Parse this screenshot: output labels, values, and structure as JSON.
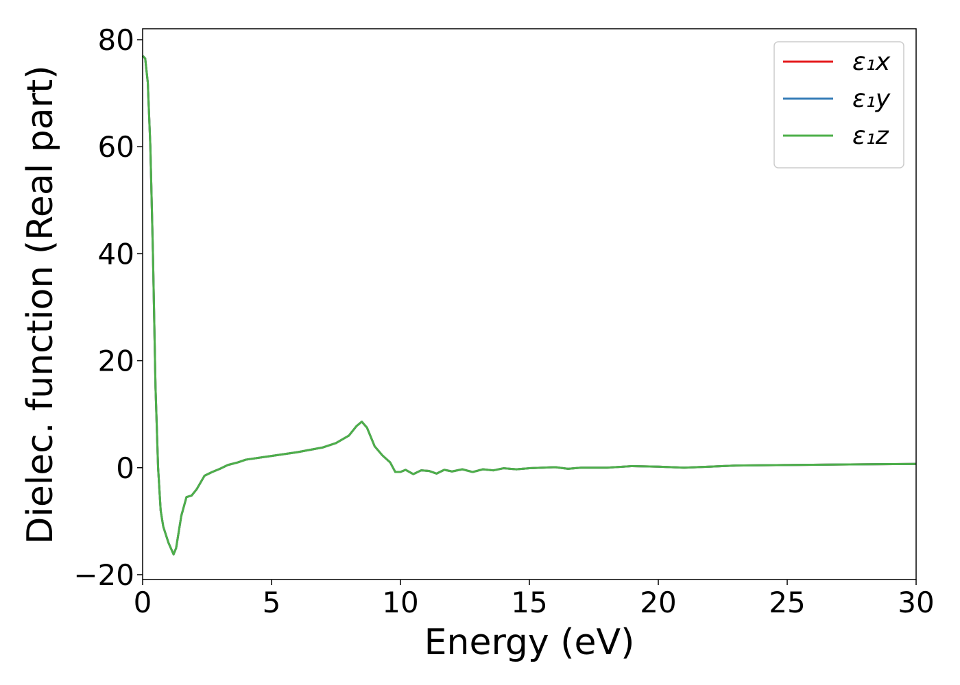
{
  "chart_data": {
    "type": "line",
    "xlabel": "Energy (eV)",
    "ylabel": "Dielec. function (Real part)",
    "x": [
      0,
      0.1,
      0.2,
      0.3,
      0.4,
      0.5,
      0.6,
      0.7,
      0.8,
      1.0,
      1.2,
      1.3,
      1.5,
      1.7,
      1.9,
      2.1,
      2.4,
      2.7,
      3.0,
      3.3,
      3.7,
      4.0,
      5.0,
      6.0,
      7.0,
      7.5,
      8.0,
      8.3,
      8.5,
      8.7,
      9.0,
      9.3,
      9.6,
      9.8,
      10.0,
      10.2,
      10.5,
      10.8,
      11.1,
      11.4,
      11.7,
      12.0,
      12.4,
      12.8,
      13.2,
      13.6,
      14.0,
      14.5,
      15,
      16,
      16.5,
      17,
      18,
      19,
      20,
      21,
      22,
      23,
      25,
      27,
      30
    ],
    "series": [
      {
        "name": "ε₁x",
        "color": "#e41a1c",
        "values": [
          77,
          76.5,
          72,
          60,
          40,
          15,
          0,
          -8,
          -11,
          -14,
          -16.2,
          -15,
          -9,
          -5.5,
          -5.2,
          -4,
          -1.5,
          -0.8,
          -0.2,
          0.5,
          1,
          1.5,
          2.2,
          2.9,
          3.8,
          4.6,
          6,
          7.8,
          8.6,
          7.5,
          4,
          2.3,
          1,
          -0.8,
          -0.8,
          -0.4,
          -1.2,
          -0.5,
          -0.6,
          -1.1,
          -0.4,
          -0.7,
          -0.3,
          -0.8,
          -0.3,
          -0.5,
          -0.1,
          -0.3,
          -0.1,
          0.1,
          -0.2,
          0,
          0,
          0.3,
          0.2,
          0,
          0.2,
          0.4,
          0.5,
          0.6,
          0.7
        ]
      },
      {
        "name": "ε₁y",
        "color": "#377eb8",
        "values": [
          77,
          76.5,
          72,
          60,
          40,
          15,
          0,
          -8,
          -11,
          -14,
          -16.2,
          -15,
          -9,
          -5.5,
          -5.2,
          -4,
          -1.5,
          -0.8,
          -0.2,
          0.5,
          1,
          1.5,
          2.2,
          2.9,
          3.8,
          4.6,
          6,
          7.8,
          8.6,
          7.5,
          4,
          2.3,
          1,
          -0.8,
          -0.8,
          -0.4,
          -1.2,
          -0.5,
          -0.6,
          -1.1,
          -0.4,
          -0.7,
          -0.3,
          -0.8,
          -0.3,
          -0.5,
          -0.1,
          -0.3,
          -0.1,
          0.1,
          -0.2,
          0,
          0,
          0.3,
          0.2,
          0,
          0.2,
          0.4,
          0.5,
          0.6,
          0.7
        ]
      },
      {
        "name": "ε₁z",
        "color": "#4daf4a",
        "values": [
          77,
          76.5,
          72,
          60,
          40,
          15,
          0,
          -8,
          -11,
          -14,
          -16.2,
          -15,
          -9,
          -5.5,
          -5.2,
          -4,
          -1.5,
          -0.8,
          -0.2,
          0.5,
          1,
          1.5,
          2.2,
          2.9,
          3.8,
          4.6,
          6,
          7.8,
          8.6,
          7.5,
          4,
          2.3,
          1,
          -0.8,
          -0.8,
          -0.4,
          -1.2,
          -0.5,
          -0.6,
          -1.1,
          -0.4,
          -0.7,
          -0.3,
          -0.8,
          -0.3,
          -0.5,
          -0.1,
          -0.3,
          -0.1,
          0.1,
          -0.2,
          0,
          0,
          0.3,
          0.2,
          0,
          0.2,
          0.4,
          0.5,
          0.6,
          0.7
        ]
      }
    ],
    "xlim": [
      0,
      30
    ],
    "xticks": [
      0,
      5,
      10,
      15,
      20,
      25,
      30
    ],
    "ylim": [
      -20.9,
      82.05
    ],
    "yticks": [
      {
        "value": -20,
        "label": "−20"
      },
      0,
      20,
      40,
      60,
      80
    ],
    "grid": false,
    "legend": "upper right"
  }
}
